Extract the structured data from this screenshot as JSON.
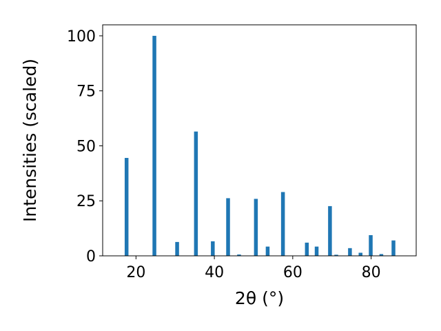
{
  "chart_data": {
    "type": "bar",
    "xlabel": "2θ (°)",
    "ylabel": "Intensities (scaled)",
    "xlim": [
      11.5,
      91.5
    ],
    "ylim": [
      0,
      105
    ],
    "xticks": [
      20,
      40,
      60,
      80
    ],
    "yticks": [
      0,
      25,
      50,
      75,
      100
    ],
    "color": "#1f77b4",
    "x": [
      17.6,
      24.7,
      30.5,
      35.3,
      39.6,
      43.5,
      46.3,
      50.6,
      53.6,
      57.5,
      63.6,
      66.1,
      69.5,
      71.1,
      74.6,
      77.3,
      79.9,
      82.6,
      85.7
    ],
    "values": [
      44.5,
      100,
      6.3,
      56.5,
      6.6,
      26.2,
      0.6,
      25.9,
      4.2,
      29.0,
      6.0,
      4.2,
      22.6,
      0.5,
      3.5,
      1.4,
      9.4,
      0.8,
      7.0
    ]
  }
}
